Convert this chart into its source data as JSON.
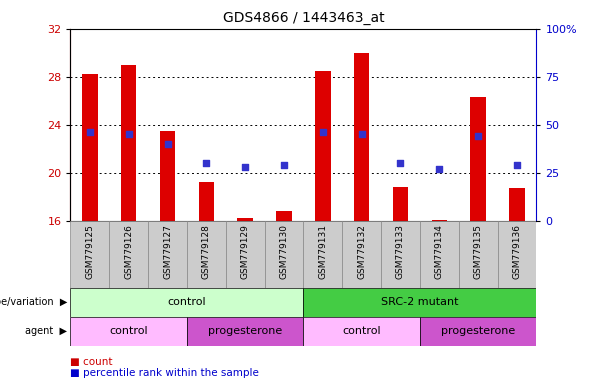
{
  "title": "GDS4866 / 1443463_at",
  "samples": [
    "GSM779125",
    "GSM779126",
    "GSM779127",
    "GSM779128",
    "GSM779129",
    "GSM779130",
    "GSM779131",
    "GSM779132",
    "GSM779133",
    "GSM779134",
    "GSM779135",
    "GSM779136"
  ],
  "bar_values": [
    28.2,
    29.0,
    23.5,
    19.2,
    16.2,
    16.8,
    28.5,
    30.0,
    18.8,
    16.1,
    26.3,
    18.7
  ],
  "dot_values_pct": [
    46,
    45,
    40,
    30,
    28,
    29,
    46,
    45,
    30,
    27,
    44,
    29
  ],
  "ymin": 16,
  "ymax": 32,
  "yticks_left": [
    16,
    20,
    24,
    28,
    32
  ],
  "yticks_right": [
    0,
    25,
    50,
    75,
    100
  ],
  "bar_color": "#dd0000",
  "dot_color": "#3333cc",
  "bar_bottom": 16,
  "genotype_groups": [
    {
      "label": "control",
      "start": 0,
      "end": 6,
      "color": "#ccffcc"
    },
    {
      "label": "SRC-2 mutant",
      "start": 6,
      "end": 12,
      "color": "#44cc44"
    }
  ],
  "agent_groups": [
    {
      "label": "control",
      "start": 0,
      "end": 3,
      "color": "#ffbbff"
    },
    {
      "label": "progesterone",
      "start": 3,
      "end": 6,
      "color": "#cc55cc"
    },
    {
      "label": "control",
      "start": 6,
      "end": 9,
      "color": "#ffbbff"
    },
    {
      "label": "progesterone",
      "start": 9,
      "end": 12,
      "color": "#cc55cc"
    }
  ],
  "legend_count_color": "#cc0000",
  "legend_dot_color": "#0000cc",
  "axis_color_left": "#cc0000",
  "axis_color_right": "#0000cc",
  "sample_bg_color": "#cccccc",
  "sample_border_color": "#888888",
  "grid_color": "#000000",
  "bar_width": 0.4
}
